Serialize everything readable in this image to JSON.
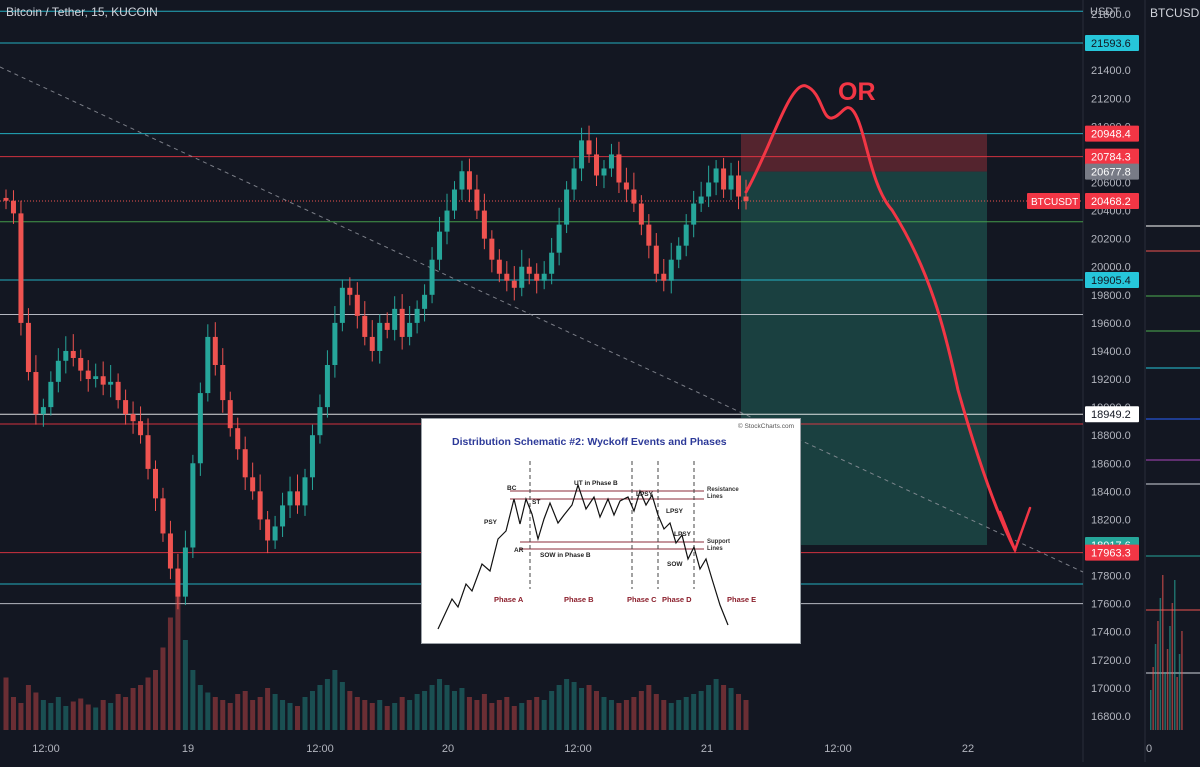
{
  "header": {
    "title": "Bitcoin / Tether, 15, KUCOIN",
    "unit": "USDT",
    "side_title": "BTCUSD,"
  },
  "colors": {
    "background": "#131722",
    "up": "#26a69a",
    "down": "#ef5350",
    "red_line": "#f23645",
    "teal_line": "#26c6da",
    "white_line": "#d1d4dc",
    "green_line": "#4caf50",
    "target_zone": "#1f5c55",
    "stop_zone": "#6b2a33"
  },
  "annotation": {
    "label": "OR"
  },
  "chart_data": {
    "type": "candlestick",
    "y_axis": {
      "min": 16700,
      "max": 21900,
      "ticks": [
        16800,
        17000,
        17200,
        17400,
        17600,
        17800,
        18000,
        18200,
        18400,
        18600,
        18800,
        19000,
        19200,
        19400,
        19600,
        19800,
        20000,
        20200,
        20400,
        20600,
        20800,
        21000,
        21200,
        21400,
        21600,
        21800
      ]
    },
    "x_ticks": [
      "12:00",
      "19",
      "12:00",
      "20",
      "12:00",
      "21",
      "12:00",
      "22"
    ],
    "current_price": {
      "label": "BTCUSDT",
      "value": "20468.2"
    },
    "price_labels": [
      {
        "value": "21593.6",
        "color": "#26c6da",
        "text_color": "#131722"
      },
      {
        "value": "20948.4",
        "color": "#f23645",
        "text_color": "#ffffff"
      },
      {
        "value": "20784.3",
        "color": "#f23645",
        "text_color": "#ffffff"
      },
      {
        "value": "20677.8",
        "color": "#787b86",
        "text_color": "#ffffff"
      },
      {
        "value": "19905.4",
        "color": "#26c6da",
        "text_color": "#131722"
      },
      {
        "value": "18949.2",
        "color": "#ffffff",
        "text_color": "#131722"
      },
      {
        "value": "18017.6",
        "color": "#26a69a",
        "text_color": "#ffffff"
      },
      {
        "value": "17963.3",
        "color": "#f23645",
        "text_color": "#ffffff"
      }
    ],
    "horizontal_lines": [
      {
        "value": 21820,
        "color": "#26c6da"
      },
      {
        "value": 21593.6,
        "color": "#26c6da"
      },
      {
        "value": 20948.4,
        "color": "#26c6da"
      },
      {
        "value": 20784.3,
        "color": "#f23645"
      },
      {
        "value": 20320,
        "color": "#4caf50"
      },
      {
        "value": 19905.4,
        "color": "#26c6da"
      },
      {
        "value": 19660,
        "color": "#d1d4dc"
      },
      {
        "value": 18949.2,
        "color": "#ffffff"
      },
      {
        "value": 18880,
        "color": "#f23645"
      },
      {
        "value": 17963.3,
        "color": "#f23645"
      },
      {
        "value": 17740,
        "color": "#26c6da"
      },
      {
        "value": 17600,
        "color": "#d1d4dc"
      }
    ],
    "trade_zone": {
      "entry": 20677.8,
      "stop": 20948.4,
      "target": 18017.6
    },
    "candles_close": [
      20470,
      20380,
      19600,
      19250,
      18950,
      19000,
      19180,
      19330,
      19400,
      19350,
      19260,
      19200,
      19220,
      19160,
      19180,
      19050,
      18950,
      18900,
      18800,
      18560,
      18350,
      18100,
      17850,
      17650,
      18000,
      18600,
      19100,
      19500,
      19300,
      19050,
      18850,
      18700,
      18500,
      18400,
      18200,
      18050,
      18150,
      18300,
      18400,
      18300,
      18500,
      18800,
      19000,
      19300,
      19600,
      19850,
      19800,
      19650,
      19500,
      19400,
      19600,
      19550,
      19700,
      19500,
      19600,
      19700,
      19800,
      20050,
      20250,
      20400,
      20550,
      20680,
      20550,
      20400,
      20200,
      20050,
      19950,
      19900,
      19850,
      20000,
      19950,
      19900,
      19950,
      20100,
      20300,
      20550,
      20700,
      20900,
      20800,
      20650,
      20700,
      20800,
      20600,
      20550,
      20450,
      20300,
      20150,
      19950,
      19900,
      20050,
      20150,
      20300,
      20450,
      20500,
      20600,
      20700,
      20550,
      20650,
      20500,
      20468
    ],
    "volume": [
      0.35,
      0.22,
      0.18,
      0.3,
      0.25,
      0.2,
      0.18,
      0.22,
      0.16,
      0.19,
      0.21,
      0.17,
      0.15,
      0.2,
      0.18,
      0.24,
      0.22,
      0.28,
      0.3,
      0.35,
      0.4,
      0.55,
      0.75,
      0.9,
      0.6,
      0.4,
      0.3,
      0.25,
      0.22,
      0.2,
      0.18,
      0.24,
      0.26,
      0.2,
      0.22,
      0.28,
      0.24,
      0.2,
      0.18,
      0.16,
      0.22,
      0.26,
      0.3,
      0.34,
      0.4,
      0.32,
      0.26,
      0.22,
      0.2,
      0.18,
      0.2,
      0.16,
      0.18,
      0.22,
      0.2,
      0.24,
      0.26,
      0.3,
      0.34,
      0.3,
      0.26,
      0.28,
      0.22,
      0.2,
      0.24,
      0.18,
      0.2,
      0.22,
      0.16,
      0.18,
      0.2,
      0.22,
      0.2,
      0.26,
      0.3,
      0.34,
      0.32,
      0.28,
      0.3,
      0.26,
      0.22,
      0.2,
      0.18,
      0.2,
      0.22,
      0.26,
      0.3,
      0.24,
      0.2,
      0.18,
      0.2,
      0.22,
      0.24,
      0.26,
      0.3,
      0.34,
      0.3,
      0.28,
      0.24,
      0.2
    ]
  },
  "inset": {
    "title": "Distribution Schematic #2: Wyckoff Events and Phases",
    "credit": "© StockCharts.com",
    "events": [
      "BC",
      "PSY",
      "ST",
      "AR",
      "UT in Phase B",
      "LPSY",
      "LPSY",
      "LPSY",
      "SOW in Phase B",
      "SOW"
    ],
    "phases": [
      "Phase A",
      "Phase B",
      "Phase C",
      "Phase D",
      "Phase E"
    ],
    "resistance_label": [
      "Resistance",
      "Lines"
    ],
    "support_label": [
      "Support",
      "Lines"
    ]
  }
}
